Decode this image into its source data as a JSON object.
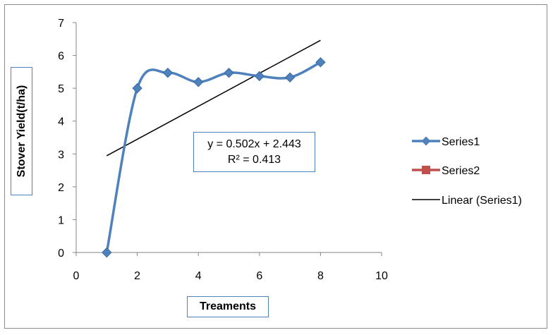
{
  "chart_data": {
    "type": "scatter",
    "title": "",
    "xlabel": "Treaments",
    "ylabel": "Stover Yield(t/ha)",
    "xlim": [
      0,
      10
    ],
    "ylim": [
      0,
      7
    ],
    "x_ticks": [
      "0",
      "2",
      "4",
      "6",
      "8",
      "10"
    ],
    "y_ticks": [
      "0",
      "1",
      "2",
      "3",
      "4",
      "5",
      "6",
      "7"
    ],
    "grid": false,
    "legend_position": "right",
    "series": [
      {
        "name": "Series1",
        "color": "#4f81bd",
        "marker": "diamond",
        "smooth": true,
        "x": [
          1,
          2,
          3,
          4,
          5,
          6,
          7,
          8
        ],
        "y": [
          0,
          5.0,
          5.47,
          5.19,
          5.47,
          5.37,
          5.33,
          5.79
        ]
      },
      {
        "name": "Series2",
        "color": "#c0504d",
        "marker": "square",
        "x": [],
        "y": []
      }
    ],
    "trendline": {
      "name": "Linear (Series1)",
      "color": "#000000",
      "slope": 0.502,
      "intercept": 2.443,
      "x_range": [
        1,
        8
      ]
    },
    "annotation": {
      "equation": "y = 0.502x + 2.443",
      "r_squared": "R² = 0.413"
    }
  }
}
